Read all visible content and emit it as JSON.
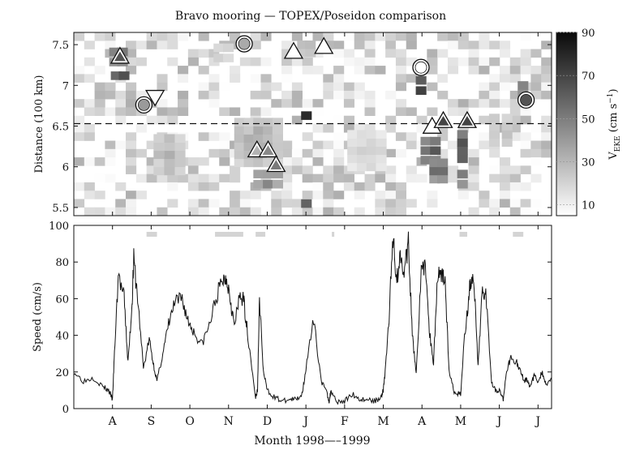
{
  "figure": {
    "title": "Bravo mooring — TOPEX/Poseidon comparison"
  },
  "chart_data": [
    {
      "type": "heatmap",
      "title": "Bravo mooring — TOPEX/Poseidon comparison",
      "ylabel": "Distance (100 km)",
      "ylim": [
        5.4,
        7.65
      ],
      "yticks": [
        "5.5",
        "6",
        "6.5",
        "7",
        "7.5"
      ],
      "x_months": [
        "A",
        "S",
        "O",
        "N",
        "D",
        "J",
        "F",
        "M",
        "A",
        "M",
        "J",
        "J"
      ],
      "mooring_distance": 6.53,
      "colorbar": {
        "label": "V_EKE (cm s^-1)",
        "range": [
          5,
          90
        ],
        "ticks": [
          "10",
          "30",
          "50",
          "70",
          "90"
        ]
      },
      "blobs": [
        {
          "x": 1.4,
          "y": 7.35,
          "w": 0.5,
          "h": 0.25,
          "v": 70
        },
        {
          "x": 1.45,
          "y": 7.12,
          "w": 0.5,
          "h": 0.14,
          "v": 85
        },
        {
          "x": 3.0,
          "y": 6.15,
          "w": 1.0,
          "h": 0.5,
          "v": 35
        },
        {
          "x": 5.8,
          "y": 6.3,
          "w": 1.5,
          "h": 0.6,
          "v": 40
        },
        {
          "x": 6.1,
          "y": 5.85,
          "w": 0.9,
          "h": 0.25,
          "v": 55
        },
        {
          "x": 7.3,
          "y": 7.45,
          "w": 0.5,
          "h": 0.2,
          "v": 40
        },
        {
          "x": 7.3,
          "y": 6.63,
          "w": 0.4,
          "h": 0.12,
          "v": 85
        },
        {
          "x": 7.3,
          "y": 5.55,
          "w": 0.4,
          "h": 0.12,
          "v": 70
        },
        {
          "x": 10.9,
          "y": 7.0,
          "w": 0.45,
          "h": 0.25,
          "v": 88
        },
        {
          "x": 11.2,
          "y": 6.2,
          "w": 0.6,
          "h": 0.35,
          "v": 75
        },
        {
          "x": 11.45,
          "y": 5.95,
          "w": 0.5,
          "h": 0.3,
          "v": 65
        },
        {
          "x": 12.2,
          "y": 6.25,
          "w": 0.35,
          "h": 0.4,
          "v": 80
        },
        {
          "x": 12.2,
          "y": 5.85,
          "w": 0.35,
          "h": 0.25,
          "v": 60
        },
        {
          "x": 14.1,
          "y": 6.95,
          "w": 0.4,
          "h": 0.2,
          "v": 65
        },
        {
          "x": 13.4,
          "y": 6.45,
          "w": 0.8,
          "h": 0.4,
          "v": 35
        },
        {
          "x": 4.7,
          "y": 7.4,
          "w": 0.6,
          "h": 0.25,
          "v": 30
        },
        {
          "x": 9.2,
          "y": 6.2,
          "w": 1.2,
          "h": 0.5,
          "v": 25
        }
      ],
      "markers": [
        {
          "shape": "triangle-up",
          "x": 1.45,
          "y": 7.36,
          "fill": "#555555"
        },
        {
          "shape": "circle",
          "x": 2.2,
          "y": 6.76,
          "fill": "#9a9a9a"
        },
        {
          "shape": "triangle-down",
          "x": 2.55,
          "y": 6.85,
          "fill": "#ffffff"
        },
        {
          "shape": "circle",
          "x": 5.35,
          "y": 7.51,
          "fill": "#aaaaaa"
        },
        {
          "shape": "triangle-up",
          "x": 5.75,
          "y": 6.21,
          "fill": "#b4b4b4"
        },
        {
          "shape": "triangle-up",
          "x": 6.1,
          "y": 6.21,
          "fill": "#8a8a8a"
        },
        {
          "shape": "triangle-up",
          "x": 6.35,
          "y": 6.03,
          "fill": "#7a7a7a"
        },
        {
          "shape": "triangle-up",
          "x": 6.9,
          "y": 7.42,
          "fill": "#ffffff"
        },
        {
          "shape": "triangle-up",
          "x": 7.85,
          "y": 7.48,
          "fill": "#ffffff"
        },
        {
          "shape": "circle",
          "x": 10.9,
          "y": 7.22,
          "fill": "#ffffff"
        },
        {
          "shape": "triangle-up",
          "x": 11.25,
          "y": 6.5,
          "fill": "#ffffff"
        },
        {
          "shape": "triangle-up",
          "x": 11.6,
          "y": 6.57,
          "fill": "#444444"
        },
        {
          "shape": "triangle-up",
          "x": 12.35,
          "y": 6.57,
          "fill": "#444444"
        },
        {
          "shape": "circle",
          "x": 14.2,
          "y": 6.82,
          "fill": "#555555"
        }
      ]
    },
    {
      "type": "line",
      "xlabel": "Month 1998—–1999",
      "ylabel": "Speed (cm/s)",
      "ylim": [
        0,
        100
      ],
      "yticks": [
        "0",
        "20",
        "40",
        "60",
        "80",
        "100"
      ],
      "x_months": [
        "A",
        "S",
        "O",
        "N",
        "D",
        "J",
        "F",
        "M",
        "A",
        "M",
        "J",
        "J"
      ],
      "x_month_positions": [
        1,
        2,
        3,
        4,
        5,
        6,
        7,
        8,
        9,
        10,
        11,
        12
      ],
      "xlim": [
        0,
        12.35
      ],
      "series": [
        {
          "x": [
            0,
            0.25,
            0.5,
            0.75,
            0.9,
            1.0,
            1.05,
            1.15,
            1.3,
            1.4,
            1.5,
            1.55,
            1.65,
            1.8,
            1.95,
            2.05,
            2.15,
            2.3,
            2.45,
            2.6,
            2.8,
            2.95,
            3.1,
            3.3,
            3.5,
            3.7,
            3.85,
            3.95,
            4.05,
            4.15,
            4.3,
            4.4,
            4.5,
            4.7,
            4.75,
            4.8,
            4.9,
            5.0,
            5.2,
            5.4,
            5.6,
            5.75,
            5.9,
            6.0,
            6.2,
            6.4,
            6.55,
            6.6,
            6.65,
            6.8,
            7.0,
            7.2,
            7.4,
            7.6,
            7.8,
            7.95,
            8.0,
            8.05,
            8.15,
            8.25,
            8.35,
            8.45,
            8.55,
            8.65,
            8.75,
            8.85,
            9.0,
            9.1,
            9.2,
            9.3,
            9.4,
            9.5,
            9.6,
            9.7,
            9.85,
            10.0,
            10.1,
            10.2,
            10.25,
            10.35,
            10.45,
            10.55,
            10.65,
            10.8,
            10.9,
            11.0,
            11.1,
            11.2,
            11.3,
            11.45,
            11.55,
            11.65,
            11.7,
            11.8,
            11.9,
            12.0,
            12.1,
            12.2,
            12.35
          ],
          "y": [
            20,
            15,
            17,
            12,
            10,
            5,
            30,
            73,
            60,
            25,
            55,
            81,
            60,
            22,
            38,
            25,
            15,
            30,
            46,
            57,
            60,
            48,
            42,
            35,
            45,
            62,
            70,
            72,
            60,
            45,
            62,
            58,
            40,
            6,
            10,
            60,
            20,
            10,
            6,
            4,
            5,
            5,
            8,
            22,
            48,
            15,
            8,
            4,
            10,
            4,
            4,
            8,
            5,
            5,
            4,
            7,
            10,
            20,
            50,
            95,
            70,
            85,
            75,
            90,
            40,
            20,
            80,
            75,
            40,
            25,
            72,
            75,
            70,
            20,
            8,
            8,
            40,
            58,
            70,
            67,
            22,
            63,
            65,
            15,
            10,
            10,
            5,
            22,
            28,
            25,
            20,
            15,
            16,
            12,
            18,
            15,
            20,
            13,
            17
          ]
        }
      ],
      "gray_bars": [
        {
          "x0": 1.88,
          "x1": 2.15
        },
        {
          "x0": 3.65,
          "x1": 4.38
        },
        {
          "x0": 4.7,
          "x1": 4.95
        },
        {
          "x0": 6.67,
          "x1": 6.73
        },
        {
          "x0": 9.97,
          "x1": 10.17
        },
        {
          "x0": 11.35,
          "x1": 11.62
        }
      ]
    }
  ]
}
